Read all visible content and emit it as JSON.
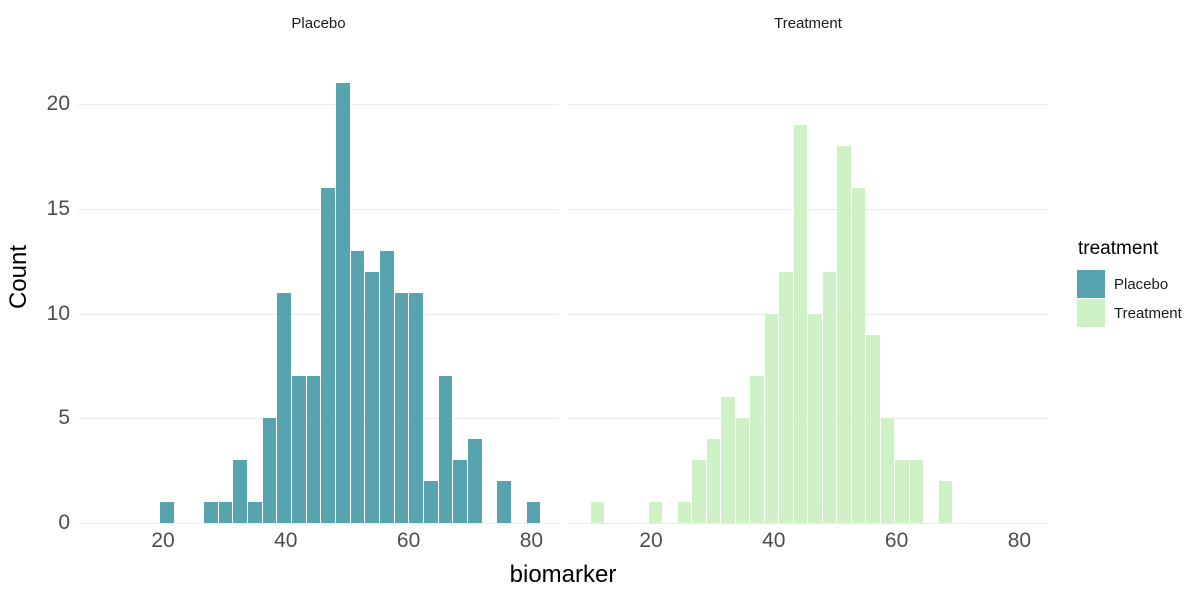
{
  "chart_data": {
    "type": "histogram",
    "title": "",
    "xlabel": "biomarker",
    "ylabel": "Count",
    "legend_title": "treatment",
    "legend_position": "right",
    "grid": "horizontal major gridlines only, white background (theme_minimal)",
    "x_ticks": [
      20,
      40,
      60,
      80
    ],
    "y_ticks": [
      0,
      5,
      10,
      15,
      20
    ],
    "x_range": [
      6.2,
      84.7
    ],
    "y_range": [
      0,
      23
    ],
    "facets": [
      {
        "label": "Placebo",
        "color": "#58A3B0",
        "bin_start": 19.5,
        "bin_width": 2.39,
        "counts": [
          1,
          0,
          0,
          1,
          1,
          3,
          1,
          5,
          11,
          7,
          7,
          16,
          21,
          13,
          12,
          13,
          11,
          11,
          2,
          7,
          3,
          4,
          0,
          2,
          0,
          1
        ]
      },
      {
        "label": "Treatment",
        "color": "#CEF1C6",
        "bin_start": 10.2,
        "bin_width": 2.36,
        "counts": [
          1,
          0,
          0,
          0,
          1,
          0,
          1,
          3,
          4,
          6,
          5,
          7,
          10,
          12,
          19,
          10,
          12,
          18,
          16,
          9,
          5,
          3,
          3,
          0,
          2
        ]
      }
    ],
    "legend_items": [
      {
        "label": "Placebo",
        "color": "#58A3B0"
      },
      {
        "label": "Treatment",
        "color": "#CEF1C6"
      }
    ]
  },
  "colors": {
    "background": "#ffffff",
    "grid": "#ebebeb",
    "tick_label": "#4d4d4d",
    "text": "#1a1a1a"
  }
}
